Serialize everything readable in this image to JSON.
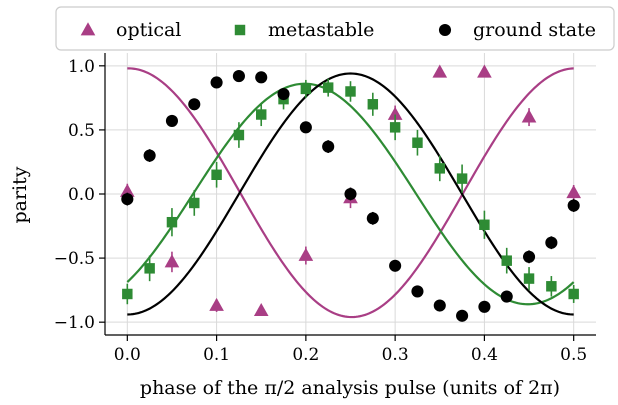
{
  "chart_data": {
    "type": "scatter",
    "title": "",
    "xlabel": "phase of the π/2 analysis pulse (units of 2π)",
    "ylabel": "parity",
    "xlim": [
      -0.025,
      0.525
    ],
    "ylim": [
      -1.1,
      1.1
    ],
    "xticks": [
      0.0,
      0.1,
      0.2,
      0.3,
      0.4,
      0.5
    ],
    "xtick_labels": [
      "0.0",
      "0.1",
      "0.2",
      "0.3",
      "0.4",
      "0.5"
    ],
    "yticks": [
      -1.0,
      -0.5,
      0.0,
      0.5,
      1.0
    ],
    "ytick_labels": [
      "−1.0",
      "−0.5",
      "0.0",
      "0.5",
      "1.0"
    ],
    "grid": true,
    "legend_position": "top",
    "series": [
      {
        "name": "optical",
        "color": "#a93e85",
        "marker": "triangle",
        "x": [
          0.0,
          0.05,
          0.1,
          0.15,
          0.2,
          0.25,
          0.3,
          0.35,
          0.4,
          0.45,
          0.5
        ],
        "y": [
          0.02,
          -0.53,
          -0.87,
          -0.91,
          -0.48,
          -0.03,
          0.62,
          0.95,
          0.95,
          0.6,
          0.01
        ],
        "err": [
          0.06,
          0.08,
          0.05,
          0.04,
          0.07,
          0.08,
          0.07,
          0.04,
          0.04,
          0.07,
          0.06
        ],
        "fit": {
          "amp": 0.97,
          "phase_deg": -1.0,
          "offset": 0.01
        }
      },
      {
        "name": "metastable",
        "color": "#2e8b34",
        "marker": "square",
        "x": [
          0.0,
          0.025,
          0.05,
          0.075,
          0.1,
          0.125,
          0.15,
          0.175,
          0.2,
          0.225,
          0.25,
          0.275,
          0.3,
          0.325,
          0.35,
          0.375,
          0.4,
          0.425,
          0.45,
          0.475,
          0.5
        ],
        "y": [
          -0.78,
          -0.58,
          -0.22,
          -0.07,
          0.15,
          0.46,
          0.62,
          0.74,
          0.82,
          0.83,
          0.8,
          0.7,
          0.52,
          0.4,
          0.2,
          0.12,
          -0.24,
          -0.52,
          -0.66,
          -0.72,
          -0.78
        ],
        "err": [
          0.08,
          0.1,
          0.11,
          0.1,
          0.1,
          0.1,
          0.09,
          0.08,
          0.07,
          0.07,
          0.08,
          0.09,
          0.1,
          0.1,
          0.1,
          0.11,
          0.11,
          0.1,
          0.09,
          0.08,
          0.07
        ],
        "fit": {
          "amp": 0.86,
          "phase_deg": 217.0,
          "offset": 0.0
        }
      },
      {
        "name": "ground state",
        "color": "#000000",
        "marker": "circle",
        "x": [
          0.0,
          0.025,
          0.05,
          0.075,
          0.1,
          0.125,
          0.15,
          0.175,
          0.2,
          0.225,
          0.25,
          0.275,
          0.3,
          0.325,
          0.35,
          0.375,
          0.4,
          0.425,
          0.45,
          0.475,
          0.5
        ],
        "y": [
          -0.04,
          0.3,
          0.57,
          0.7,
          0.87,
          0.92,
          0.91,
          0.78,
          0.52,
          0.37,
          0.0,
          -0.19,
          -0.56,
          -0.76,
          -0.87,
          -0.95,
          -0.88,
          -0.8,
          -0.49,
          -0.38,
          -0.09
        ],
        "err": [
          0.05,
          0.05,
          0.04,
          0.04,
          0.04,
          0.03,
          0.03,
          0.04,
          0.04,
          0.05,
          0.05,
          0.05,
          0.04,
          0.04,
          0.03,
          0.03,
          0.03,
          0.04,
          0.05,
          0.05,
          0.05
        ],
        "fit": {
          "amp": 0.94,
          "phase_deg": 180.0,
          "offset": 0.0
        }
      }
    ]
  }
}
